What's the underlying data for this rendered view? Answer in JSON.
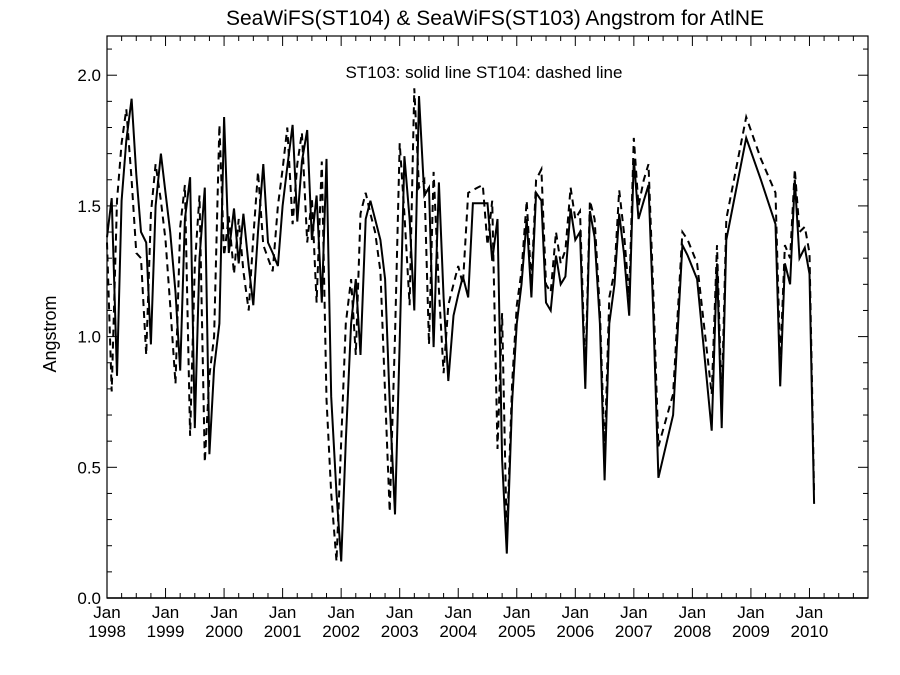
{
  "chart_data": {
    "type": "line",
    "title": "SeaWiFS(ST104) & SeaWiFS(ST103)  Angstrom for AtlNE",
    "ylabel": "Angstrom",
    "xlabel": "",
    "ylim": [
      0,
      2.15
    ],
    "xlim": [
      1998.0,
      2011.0
    ],
    "yticks": [
      {
        "value": 0.0,
        "label": "0.0"
      },
      {
        "value": 0.5,
        "label": "0.5"
      },
      {
        "value": 1.0,
        "label": "1.0"
      },
      {
        "value": 1.5,
        "label": "1.5"
      },
      {
        "value": 2.0,
        "label": "2.0"
      }
    ],
    "xticks": [
      {
        "value": 1998,
        "month": "Jan",
        "year": "1998"
      },
      {
        "value": 1999,
        "month": "Jan",
        "year": "1999"
      },
      {
        "value": 2000,
        "month": "Jan",
        "year": "2000"
      },
      {
        "value": 2001,
        "month": "Jan",
        "year": "2001"
      },
      {
        "value": 2002,
        "month": "Jan",
        "year": "2002"
      },
      {
        "value": 2003,
        "month": "Jan",
        "year": "2003"
      },
      {
        "value": 2004,
        "month": "Jan",
        "year": "2004"
      },
      {
        "value": 2005,
        "month": "Jan",
        "year": "2005"
      },
      {
        "value": 2006,
        "month": "Jan",
        "year": "2006"
      },
      {
        "value": 2007,
        "month": "Jan",
        "year": "2007"
      },
      {
        "value": 2008,
        "month": "Jan",
        "year": "2008"
      },
      {
        "value": 2009,
        "month": "Jan",
        "year": "2009"
      },
      {
        "value": 2010,
        "month": "Jan",
        "year": "2010"
      }
    ],
    "legend_text": "ST103: solid line    ST104: dashed line",
    "grid": false,
    "series": [
      {
        "name": "ST103",
        "style": "solid",
        "color": "#000000",
        "points": [
          [
            1998.0,
            1.38
          ],
          [
            1998.08,
            1.53
          ],
          [
            1998.17,
            0.85
          ],
          [
            1998.25,
            1.52
          ],
          [
            1998.33,
            1.75
          ],
          [
            1998.42,
            1.91
          ],
          [
            1998.5,
            1.62
          ],
          [
            1998.58,
            1.4
          ],
          [
            1998.67,
            1.36
          ],
          [
            1998.75,
            0.97
          ],
          [
            1998.83,
            1.5
          ],
          [
            1998.92,
            1.7
          ],
          [
            1999.0,
            1.55
          ],
          [
            1999.08,
            1.4
          ],
          [
            1999.17,
            1.17
          ],
          [
            1999.25,
            0.87
          ],
          [
            1999.33,
            1.45
          ],
          [
            1999.42,
            1.61
          ],
          [
            1999.5,
            0.65
          ],
          [
            1999.58,
            1.3
          ],
          [
            1999.67,
            1.57
          ],
          [
            1999.75,
            0.55
          ],
          [
            1999.83,
            0.88
          ],
          [
            1999.92,
            1.05
          ],
          [
            2000.0,
            1.84
          ],
          [
            2000.08,
            1.32
          ],
          [
            2000.17,
            1.49
          ],
          [
            2000.25,
            1.28
          ],
          [
            2000.33,
            1.47
          ],
          [
            2000.42,
            1.27
          ],
          [
            2000.5,
            1.12
          ],
          [
            2000.58,
            1.4
          ],
          [
            2000.67,
            1.66
          ],
          [
            2000.75,
            1.36
          ],
          [
            2000.83,
            1.32
          ],
          [
            2000.92,
            1.27
          ],
          [
            2001.0,
            1.5
          ],
          [
            2001.08,
            1.65
          ],
          [
            2001.17,
            1.81
          ],
          [
            2001.25,
            1.44
          ],
          [
            2001.33,
            1.67
          ],
          [
            2001.42,
            1.79
          ],
          [
            2001.5,
            1.37
          ],
          [
            2001.58,
            1.54
          ],
          [
            2001.67,
            1.13
          ],
          [
            2001.75,
            1.68
          ],
          [
            2001.83,
            0.77
          ],
          [
            2001.92,
            0.4
          ],
          [
            2002.0,
            0.14
          ],
          [
            2002.08,
            0.6
          ],
          [
            2002.17,
            1.05
          ],
          [
            2002.25,
            1.22
          ],
          [
            2002.33,
            0.93
          ],
          [
            2002.42,
            1.45
          ],
          [
            2002.5,
            1.52
          ],
          [
            2002.58,
            1.45
          ],
          [
            2002.67,
            1.37
          ],
          [
            2002.75,
            1.22
          ],
          [
            2002.83,
            0.75
          ],
          [
            2002.92,
            0.32
          ],
          [
            2003.0,
            0.98
          ],
          [
            2003.08,
            1.69
          ],
          [
            2003.17,
            1.45
          ],
          [
            2003.25,
            1.1
          ],
          [
            2003.33,
            1.92
          ],
          [
            2003.42,
            1.54
          ],
          [
            2003.5,
            1.57
          ],
          [
            2003.58,
            0.96
          ],
          [
            2003.67,
            1.59
          ],
          [
            2003.75,
            1.15
          ],
          [
            2003.83,
            0.83
          ],
          [
            2003.92,
            1.08
          ],
          [
            2004.0,
            1.16
          ],
          [
            2004.08,
            1.23
          ],
          [
            2004.17,
            1.15
          ],
          [
            2004.25,
            1.51
          ],
          [
            2004.33,
            1.51
          ],
          [
            2004.42,
            1.51
          ],
          [
            2004.5,
            1.51
          ],
          [
            2004.58,
            1.29
          ],
          [
            2004.67,
            1.45
          ],
          [
            2004.75,
            0.53
          ],
          [
            2004.83,
            0.17
          ],
          [
            2004.92,
            0.75
          ],
          [
            2005.0,
            1.05
          ],
          [
            2005.08,
            1.2
          ],
          [
            2005.17,
            1.45
          ],
          [
            2005.25,
            1.15
          ],
          [
            2005.33,
            1.55
          ],
          [
            2005.42,
            1.52
          ],
          [
            2005.5,
            1.13
          ],
          [
            2005.58,
            1.1
          ],
          [
            2005.67,
            1.31
          ],
          [
            2005.75,
            1.2
          ],
          [
            2005.83,
            1.23
          ],
          [
            2005.92,
            1.49
          ],
          [
            2006.0,
            1.37
          ],
          [
            2006.08,
            1.4
          ],
          [
            2006.17,
            0.8
          ],
          [
            2006.25,
            1.48
          ],
          [
            2006.33,
            1.38
          ],
          [
            2006.42,
            1.05
          ],
          [
            2006.5,
            0.45
          ],
          [
            2006.58,
            1.05
          ],
          [
            2006.67,
            1.2
          ],
          [
            2006.75,
            1.47
          ],
          [
            2006.83,
            1.32
          ],
          [
            2006.92,
            1.08
          ],
          [
            2007.0,
            1.68
          ],
          [
            2007.08,
            1.45
          ],
          [
            2007.17,
            1.52
          ],
          [
            2007.25,
            1.58
          ],
          [
            2007.33,
            1.1
          ],
          [
            2007.42,
            0.46
          ],
          [
            2007.67,
            0.7
          ],
          [
            2007.83,
            1.35
          ],
          [
            2007.92,
            1.31
          ],
          [
            2008.08,
            1.22
          ],
          [
            2008.33,
            0.64
          ],
          [
            2008.42,
            1.28
          ],
          [
            2008.5,
            0.65
          ],
          [
            2008.58,
            1.37
          ],
          [
            2008.92,
            1.76
          ],
          [
            2009.17,
            1.6
          ],
          [
            2009.42,
            1.43
          ],
          [
            2009.5,
            0.81
          ],
          [
            2009.58,
            1.28
          ],
          [
            2009.67,
            1.2
          ],
          [
            2009.75,
            1.6
          ],
          [
            2009.83,
            1.3
          ],
          [
            2009.92,
            1.34
          ],
          [
            2010.0,
            1.24
          ],
          [
            2010.08,
            0.36
          ]
        ]
      },
      {
        "name": "ST104",
        "style": "dashed",
        "color": "#000000",
        "points": [
          [
            1998.0,
            1.36
          ],
          [
            1998.08,
            0.79
          ],
          [
            1998.17,
            1.52
          ],
          [
            1998.25,
            1.74
          ],
          [
            1998.33,
            1.87
          ],
          [
            1998.42,
            1.6
          ],
          [
            1998.5,
            1.32
          ],
          [
            1998.58,
            1.3
          ],
          [
            1998.67,
            0.93
          ],
          [
            1998.75,
            1.47
          ],
          [
            1998.83,
            1.66
          ],
          [
            1998.92,
            1.52
          ],
          [
            1999.0,
            1.37
          ],
          [
            1999.08,
            1.12
          ],
          [
            1999.17,
            0.82
          ],
          [
            1999.25,
            1.42
          ],
          [
            1999.33,
            1.58
          ],
          [
            1999.42,
            0.62
          ],
          [
            1999.5,
            1.27
          ],
          [
            1999.58,
            1.54
          ],
          [
            1999.67,
            0.52
          ],
          [
            1999.75,
            0.85
          ],
          [
            1999.83,
            1.0
          ],
          [
            1999.92,
            1.81
          ],
          [
            2000.0,
            1.31
          ],
          [
            2000.08,
            1.46
          ],
          [
            2000.17,
            1.24
          ],
          [
            2000.25,
            1.45
          ],
          [
            2000.33,
            1.25
          ],
          [
            2000.42,
            1.1
          ],
          [
            2000.5,
            1.38
          ],
          [
            2000.58,
            1.63
          ],
          [
            2000.67,
            1.35
          ],
          [
            2000.75,
            1.3
          ],
          [
            2000.83,
            1.25
          ],
          [
            2000.92,
            1.5
          ],
          [
            2001.0,
            1.64
          ],
          [
            2001.08,
            1.8
          ],
          [
            2001.17,
            1.43
          ],
          [
            2001.25,
            1.66
          ],
          [
            2001.33,
            1.78
          ],
          [
            2001.42,
            1.36
          ],
          [
            2001.5,
            1.53
          ],
          [
            2001.58,
            1.13
          ],
          [
            2001.67,
            1.67
          ],
          [
            2001.75,
            0.76
          ],
          [
            2001.83,
            0.4
          ],
          [
            2001.92,
            0.14
          ],
          [
            2002.0,
            0.6
          ],
          [
            2002.08,
            1.05
          ],
          [
            2002.17,
            1.22
          ],
          [
            2002.25,
            0.93
          ],
          [
            2002.33,
            1.47
          ],
          [
            2002.42,
            1.55
          ],
          [
            2002.5,
            1.47
          ],
          [
            2002.58,
            1.4
          ],
          [
            2002.67,
            1.25
          ],
          [
            2002.75,
            0.78
          ],
          [
            2002.83,
            0.33
          ],
          [
            2002.92,
            1.0
          ],
          [
            2003.0,
            1.74
          ],
          [
            2003.08,
            1.47
          ],
          [
            2003.17,
            1.12
          ],
          [
            2003.25,
            1.95
          ],
          [
            2003.33,
            1.57
          ],
          [
            2003.42,
            1.6
          ],
          [
            2003.5,
            0.97
          ],
          [
            2003.58,
            1.63
          ],
          [
            2003.67,
            1.18
          ],
          [
            2003.75,
            0.86
          ],
          [
            2003.83,
            1.12
          ],
          [
            2003.92,
            1.2
          ],
          [
            2004.0,
            1.27
          ],
          [
            2004.08,
            1.2
          ],
          [
            2004.17,
            1.55
          ],
          [
            2004.25,
            1.56
          ],
          [
            2004.33,
            1.57
          ],
          [
            2004.42,
            1.58
          ],
          [
            2004.5,
            1.35
          ],
          [
            2004.58,
            1.52
          ],
          [
            2004.67,
            0.57
          ],
          [
            2004.75,
            1.09
          ],
          [
            2004.83,
            0.22
          ],
          [
            2004.92,
            0.82
          ],
          [
            2005.0,
            1.12
          ],
          [
            2005.08,
            1.25
          ],
          [
            2005.17,
            1.52
          ],
          [
            2005.25,
            1.2
          ],
          [
            2005.33,
            1.6
          ],
          [
            2005.42,
            1.64
          ],
          [
            2005.5,
            1.2
          ],
          [
            2005.58,
            1.17
          ],
          [
            2005.67,
            1.4
          ],
          [
            2005.75,
            1.28
          ],
          [
            2005.83,
            1.33
          ],
          [
            2005.92,
            1.57
          ],
          [
            2006.0,
            1.45
          ],
          [
            2006.08,
            1.48
          ],
          [
            2006.17,
            0.85
          ],
          [
            2006.25,
            1.52
          ],
          [
            2006.33,
            1.45
          ],
          [
            2006.42,
            1.1
          ],
          [
            2006.5,
            0.55
          ],
          [
            2006.58,
            1.15
          ],
          [
            2006.67,
            1.25
          ],
          [
            2006.75,
            1.56
          ],
          [
            2006.83,
            1.4
          ],
          [
            2006.92,
            1.15
          ],
          [
            2007.0,
            1.76
          ],
          [
            2007.08,
            1.5
          ],
          [
            2007.17,
            1.6
          ],
          [
            2007.25,
            1.66
          ],
          [
            2007.33,
            1.18
          ],
          [
            2007.42,
            0.58
          ],
          [
            2007.67,
            0.78
          ],
          [
            2007.83,
            1.4
          ],
          [
            2007.92,
            1.37
          ],
          [
            2008.08,
            1.28
          ],
          [
            2008.33,
            0.78
          ],
          [
            2008.42,
            1.35
          ],
          [
            2008.5,
            0.75
          ],
          [
            2008.58,
            1.45
          ],
          [
            2008.92,
            1.84
          ],
          [
            2009.17,
            1.68
          ],
          [
            2009.42,
            1.55
          ],
          [
            2009.5,
            0.9
          ],
          [
            2009.58,
            1.35
          ],
          [
            2009.67,
            1.3
          ],
          [
            2009.75,
            1.64
          ],
          [
            2009.83,
            1.4
          ],
          [
            2009.92,
            1.42
          ],
          [
            2010.0,
            1.32
          ],
          [
            2010.08,
            0.4
          ]
        ]
      }
    ]
  }
}
